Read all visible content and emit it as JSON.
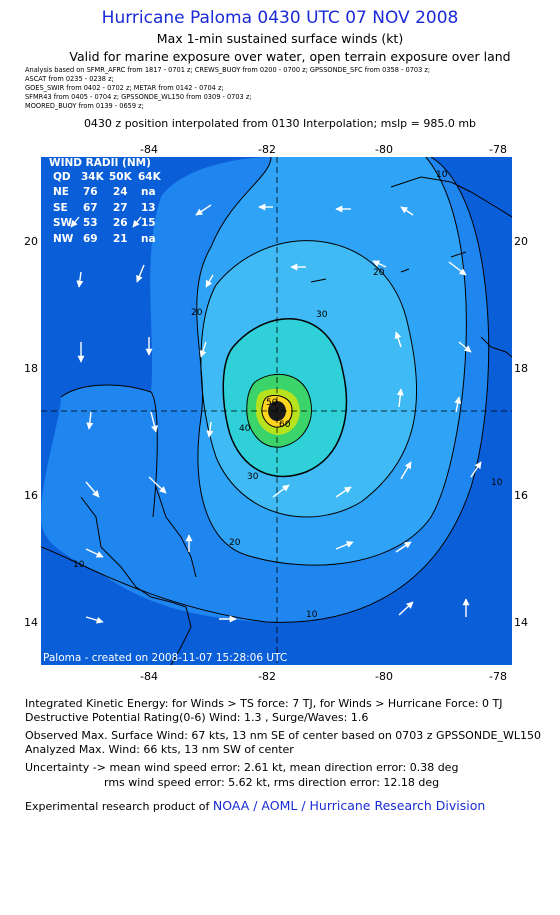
{
  "title": "Hurricane Paloma 0430 UTC 07 NOV 2008",
  "subtitle_line1": "Max 1-min sustained surface winds (kt)",
  "subtitle_line2": "Valid for marine exposure over water, open terrain exposure over land",
  "sources": [
    "Analysis based on  SFMR_AFRC from 1817 - 0701 z;   CREWS_BUOY from 0200 - 0700 z;   GPSSONDE_SFC from 0358 - 0703 z;",
    "ASCAT from 0235 - 0238 z;",
    "GOES_SWIR from 0402 - 0702 z;   METAR from 0142 - 0704 z;",
    "SFMR43 from 0405 - 0704 z;   GPSSONDE_WL150 from 0309 - 0703 z;",
    "MOORED_BUOY from 0139 - 0659 z;"
  ],
  "interpolation_note": "0430 z position interpolated from 0130 Interpolation; mslp = 985.0 mb",
  "axes": {
    "lon_ticks": [
      "-84",
      "-82",
      "-80",
      "-78"
    ],
    "lat_ticks": [
      "20",
      "18",
      "16",
      "14"
    ]
  },
  "wind_radii": {
    "title": "WIND RADII (NM)",
    "header": [
      "QD",
      "34K",
      "50K",
      "64K"
    ],
    "rows": [
      [
        "NE",
        "76",
        "24",
        "na"
      ],
      [
        "SE",
        "67",
        "27",
        "13"
      ],
      [
        "SW",
        "53",
        "26",
        "15"
      ],
      [
        "NW",
        "69",
        "21",
        "na"
      ]
    ]
  },
  "contour_labels": [
    "10",
    "20",
    "30",
    "40",
    "50",
    "60",
    "20",
    "30",
    "10",
    "10",
    "10",
    "20",
    "30",
    "40"
  ],
  "map_credit": "Paloma - created on 2008-11-07 15:28:06 UTC",
  "footer": {
    "ike": "Integrated Kinetic Energy:  for Winds > TS force: 7 TJ,  for Winds > Hurricane Force: 0 TJ",
    "dpr": "Destructive Potential Rating(0-6)   Wind: 1.3 , Surge/Waves: 1.6",
    "observed": "Observed Max. Surface Wind: 67 kts, 13 nm SE of center based on 0703 z GPSSONDE_WL150",
    "analyzed": "Analyzed Max. Wind: 66 kts, 13 nm SW of center",
    "uncert1": "Uncertainty -> mean wind speed error: 2.61 kt,   mean direction error: 0.38 deg",
    "uncert2": "rms wind speed error: 5.62 kt,   rms direction error: 12.18 deg",
    "credit_prefix": "Experimental research product of ",
    "credit_org": "NOAA / AOML / Hurricane Research Division"
  },
  "colors": {
    "title_blue": "#1a2bd6",
    "level_0_10": "#0a5fd8",
    "level_10_20": "#1f86f0",
    "level_20_30": "#2fa3f5",
    "level_30_40": "#3fbaf4",
    "level_40_50": "#2fd0d8",
    "level_50_60": "#3ad46a",
    "level_60_64": "#b8e21e",
    "level_64_plus": "#ffd51e"
  }
}
